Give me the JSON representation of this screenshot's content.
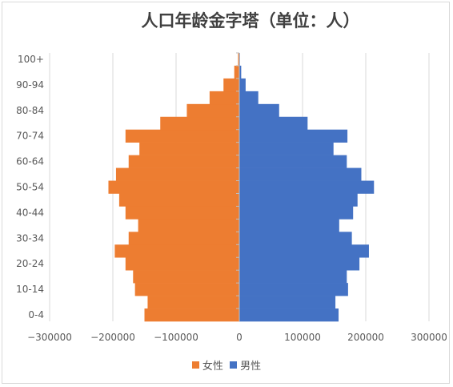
{
  "chart_data": {
    "type": "bar",
    "orientation": "horizontal",
    "layout": "population-pyramid",
    "title": "人口年龄金字塔（单位：人）",
    "age_groups": [
      "0-4",
      "5-9",
      "10-14",
      "15-19",
      "20-24",
      "25-29",
      "30-34",
      "35-39",
      "40-44",
      "45-49",
      "50-54",
      "55-59",
      "60-64",
      "65-69",
      "70-74",
      "75-79",
      "80-84",
      "85-89",
      "90-94",
      "95-99",
      "100+"
    ],
    "y_tick_labels": [
      "0-4",
      "10-14",
      "20-24",
      "30-34",
      "40-44",
      "50-54",
      "60-64",
      "70-74",
      "80-84",
      "90-94",
      "100+"
    ],
    "series": [
      {
        "name": "女性",
        "color": "#ED7D31",
        "values": [
          -150000,
          -145000,
          -165000,
          -168000,
          -180000,
          -197000,
          -175000,
          -160000,
          -180000,
          -190000,
          -207000,
          -195000,
          -175000,
          -158000,
          -180000,
          -125000,
          -83000,
          -47000,
          -25000,
          -8000,
          -2000
        ]
      },
      {
        "name": "男性",
        "color": "#4472C4",
        "values": [
          157000,
          152000,
          172000,
          170000,
          190000,
          205000,
          178000,
          158000,
          180000,
          187000,
          213000,
          193000,
          170000,
          149000,
          171000,
          108000,
          63000,
          30000,
          10000,
          3000,
          1000
        ]
      }
    ],
    "xlim": [
      -300000,
      300000
    ],
    "x_ticks": [
      -300000,
      -200000,
      -100000,
      0,
      100000,
      200000,
      300000
    ],
    "x_tick_labels": [
      "−300000",
      "−200000",
      "−100000",
      "0",
      "100000",
      "200000",
      "300000"
    ],
    "grid": "vertical",
    "legend_position": "bottom"
  }
}
